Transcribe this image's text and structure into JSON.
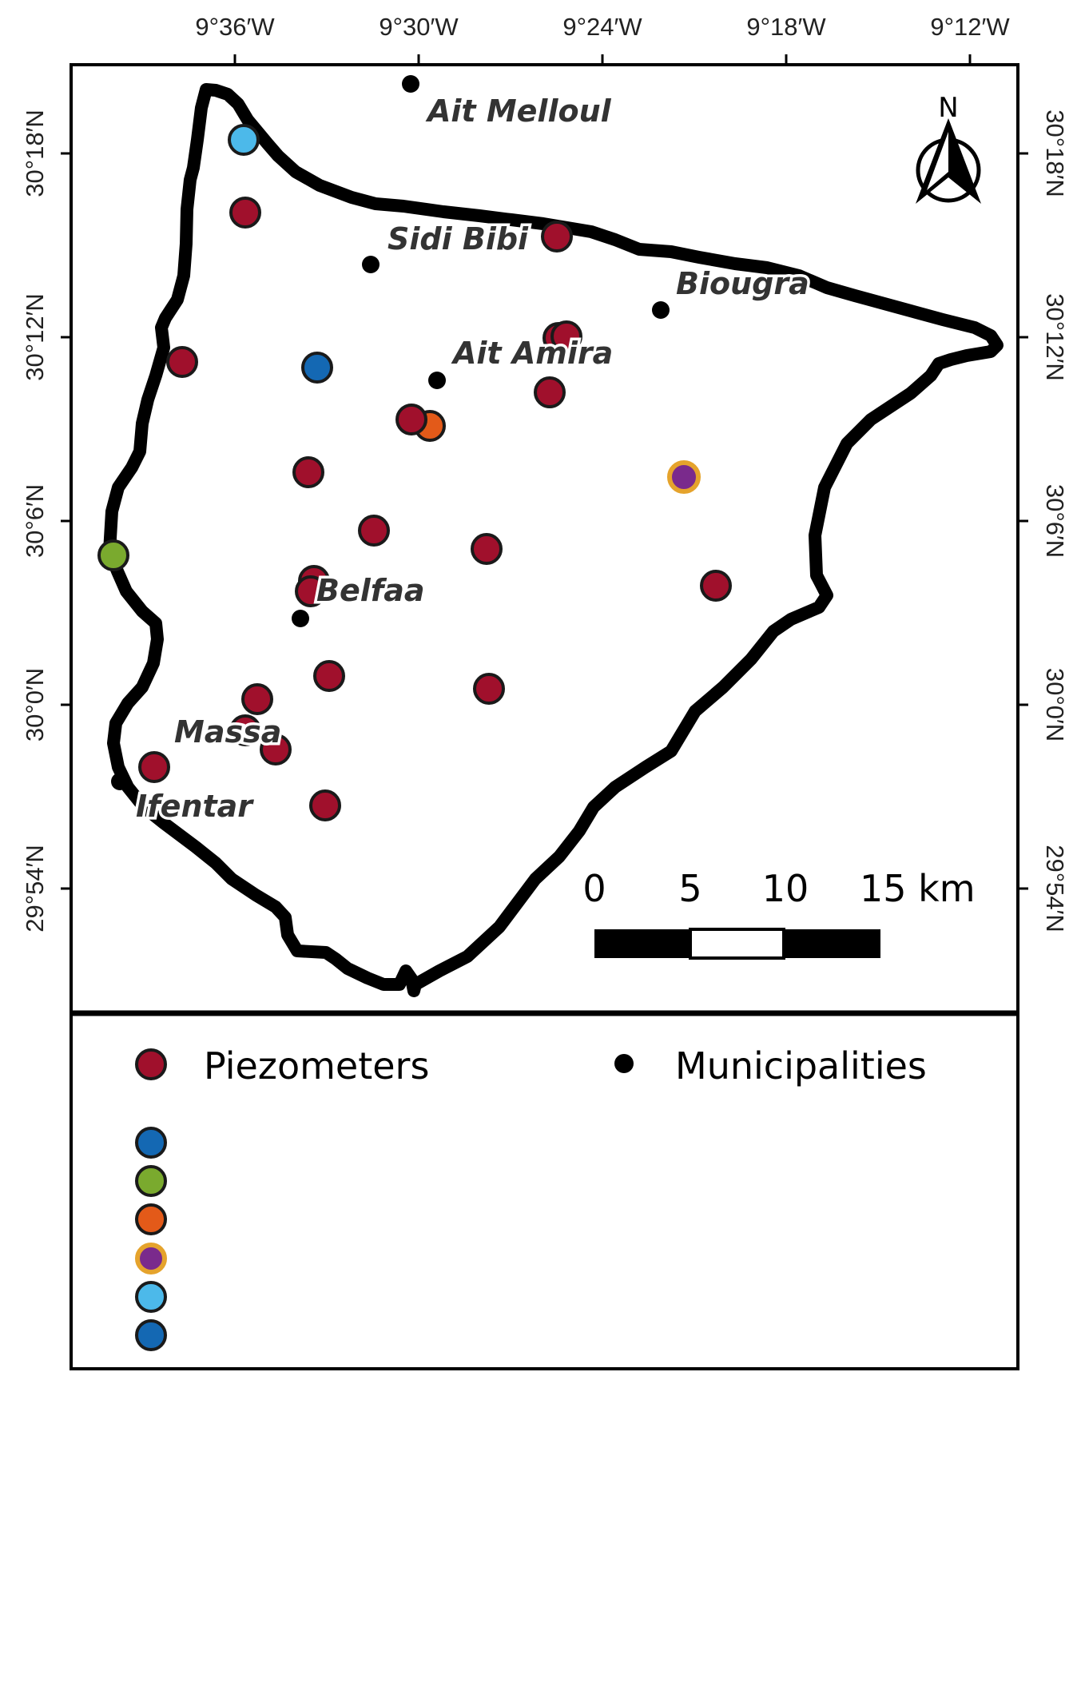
{
  "map": {
    "longitude_ticks": [
      "9°36′W",
      "9°30′W",
      "9°24′W",
      "9°18′W",
      "9°12′W"
    ],
    "latitude_ticks": [
      "30°18′N",
      "30°12′N",
      "30°6′N",
      "30°0′N",
      "29°54′N"
    ],
    "places": [
      {
        "name": "Ait Melloul"
      },
      {
        "name": "Sidi Bibi"
      },
      {
        "name": "Biougra"
      },
      {
        "name": "Ait Amira"
      },
      {
        "name": "Belfaa"
      },
      {
        "name": "Massa"
      },
      {
        "name": "Ifentar"
      }
    ],
    "north_arrow": {
      "label": "N",
      "icon": "north-arrow-icon"
    },
    "scale_bar": {
      "labels": [
        "0",
        "5",
        "10",
        "15 km"
      ]
    }
  },
  "legend": {
    "items": [
      {
        "label": "Piezometers",
        "color": "#a0102c"
      },
      {
        "label": "Municipalities",
        "color": "#000000"
      }
    ],
    "unlabeled_symbols": [
      {
        "fill": "#1468b3",
        "stroke": "#1a1a1a"
      },
      {
        "fill": "#7aaa2e",
        "stroke": "#1a1a1a"
      },
      {
        "fill": "#e35a19",
        "stroke": "#1a1a1a"
      },
      {
        "fill": "#7a2a8c",
        "stroke": "#e5a32c"
      },
      {
        "fill": "#4cb9ea",
        "stroke": "#1a1a1a"
      },
      {
        "fill": "#1468b3",
        "stroke": "#1a1a1a"
      }
    ]
  },
  "colors": {
    "piezometer": "#a0102c",
    "piezometer_stroke": "#1a1a1a",
    "blue": "#1468b3",
    "light_blue": "#4cb9ea",
    "green": "#7aaa2e",
    "orange": "#e35a19",
    "purple": "#7a2a8c",
    "purple_ring": "#e5a32c",
    "municipality": "#000000"
  }
}
